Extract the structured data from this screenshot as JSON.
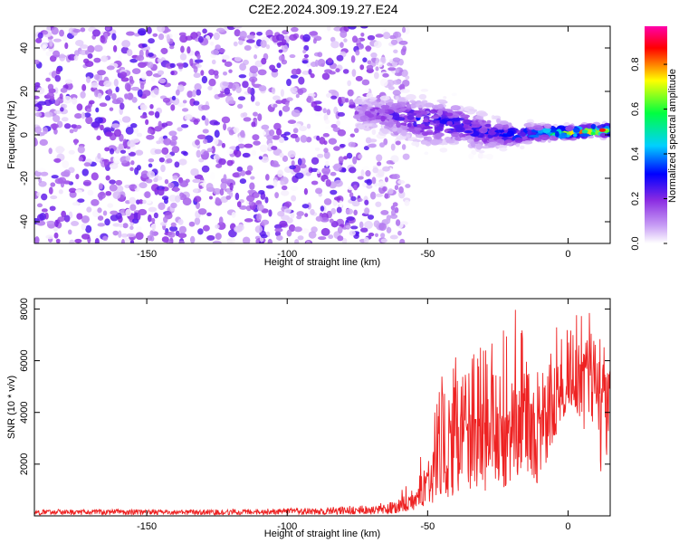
{
  "title": "C2E2.2024.309.19.27.E24",
  "chart_data": [
    {
      "type": "heatmap",
      "xlabel": "Height of straight line (km)",
      "ylabel": "Frequency (Hz)",
      "xlim": [
        -190,
        15
      ],
      "ylim": [
        -50,
        50
      ],
      "xticks": [
        -150,
        -100,
        -50,
        0
      ],
      "yticks": [
        -40,
        -20,
        0,
        20,
        40
      ],
      "grid": false,
      "colorbar": {
        "label": "Normalized spectral amplitude",
        "ticks": [
          0.0,
          0.2,
          0.4,
          0.6,
          0.8
        ],
        "range": [
          0,
          0.97
        ],
        "colormap": [
          "#ffffff",
          "#8a2be2",
          "#0000ff",
          "#00d0ff",
          "#00ff40",
          "#ffff00",
          "#ff0000",
          "#ff00aa"
        ]
      },
      "noise_region": {
        "x_end": -62,
        "freq_range": [
          -50,
          50
        ],
        "mean_amplitude": 0.05
      },
      "signal_ridge": {
        "x": [
          -75,
          -60,
          -50,
          -40,
          -30,
          -20,
          -10,
          0,
          10,
          15
        ],
        "center_freq": [
          10,
          9,
          6,
          5,
          1,
          0,
          1,
          1,
          2,
          2
        ],
        "spread_hz": [
          8,
          10,
          12,
          10,
          9,
          6,
          4,
          3,
          3,
          3
        ],
        "peak_amplitude": [
          0.15,
          0.25,
          0.3,
          0.3,
          0.3,
          0.35,
          0.5,
          0.75,
          0.85,
          0.85
        ]
      }
    },
    {
      "type": "line",
      "xlabel": "Height of straight line (km)",
      "ylabel": "SNR (10 * v/v)",
      "xlim": [
        -190,
        15
      ],
      "ylim": [
        0,
        8400
      ],
      "xticks": [
        -150,
        -100,
        -50,
        0
      ],
      "yticks": [
        2000,
        4000,
        6000,
        8000
      ],
      "grid": false,
      "series": [
        {
          "color": "#ee2222",
          "x": [
            -190,
            -180,
            -170,
            -160,
            -150,
            -140,
            -130,
            -120,
            -110,
            -100,
            -90,
            -80,
            -70,
            -62,
            -58,
            -55,
            -52,
            -50,
            -48,
            -45,
            -42,
            -40,
            -38,
            -35,
            -32,
            -30,
            -28,
            -25,
            -22,
            -20,
            -18,
            -16,
            -14,
            -12,
            -10,
            -8,
            -6,
            -4,
            -2,
            0,
            2,
            4,
            6,
            8,
            10,
            12,
            14,
            15
          ],
          "y": [
            180,
            170,
            160,
            170,
            180,
            160,
            170,
            170,
            180,
            190,
            200,
            230,
            260,
            350,
            450,
            700,
            1100,
            1500,
            2200,
            2700,
            3200,
            3500,
            3300,
            3100,
            3400,
            3600,
            3000,
            3200,
            3700,
            3600,
            4200,
            3900,
            4500,
            3300,
            3600,
            3900,
            4500,
            4800,
            5200,
            5300,
            5200,
            5600,
            5700,
            5500,
            5000,
            4500,
            5200,
            5600
          ],
          "max_y": [
            250,
            250,
            240,
            250,
            260,
            240,
            250,
            260,
            270,
            300,
            320,
            380,
            450,
            600,
            1200,
            1700,
            2600,
            3300,
            4200,
            5400,
            6300,
            6800,
            6900,
            6200,
            7200,
            6800,
            6500,
            7300,
            7100,
            7700,
            8350,
            7600,
            6200,
            5500,
            5600,
            5800,
            6600,
            7400,
            7700,
            7200,
            8200,
            8400,
            6800,
            8250,
            6800,
            7000,
            6400,
            5800
          ],
          "min_y": [
            40,
            40,
            40,
            40,
            40,
            40,
            40,
            40,
            40,
            50,
            50,
            60,
            60,
            80,
            150,
            200,
            300,
            400,
            500,
            600,
            700,
            700,
            600,
            700,
            800,
            900,
            800,
            900,
            1000,
            1100,
            1200,
            1300,
            1500,
            1000,
            1400,
            2000,
            2700,
            3200,
            3600,
            4000,
            4100,
            3600,
            3200,
            2400,
            2100,
            1600,
            2200,
            4800
          ]
        }
      ]
    }
  ]
}
